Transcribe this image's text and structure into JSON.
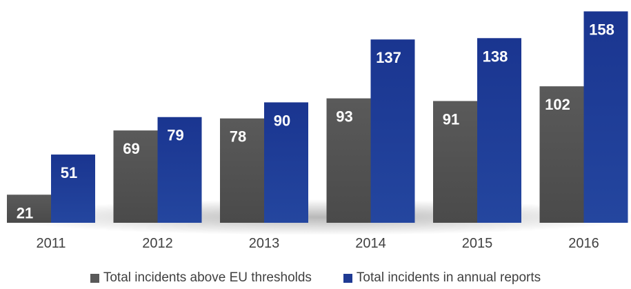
{
  "chart_data": {
    "type": "bar",
    "categories": [
      "2011",
      "2012",
      "2013",
      "2014",
      "2015",
      "2016"
    ],
    "series": [
      {
        "name": "Total incidents above EU thresholds",
        "values": [
          21,
          69,
          78,
          93,
          91,
          102
        ],
        "color": "#595959"
      },
      {
        "name": "Total incidents in annual reports",
        "values": [
          51,
          79,
          90,
          137,
          138,
          158
        ],
        "color": "#1f3a93"
      }
    ],
    "title": "",
    "xlabel": "",
    "ylabel": "",
    "ylim": [
      0,
      160
    ],
    "grid": false,
    "data_labels": true,
    "legend_position": "bottom"
  }
}
